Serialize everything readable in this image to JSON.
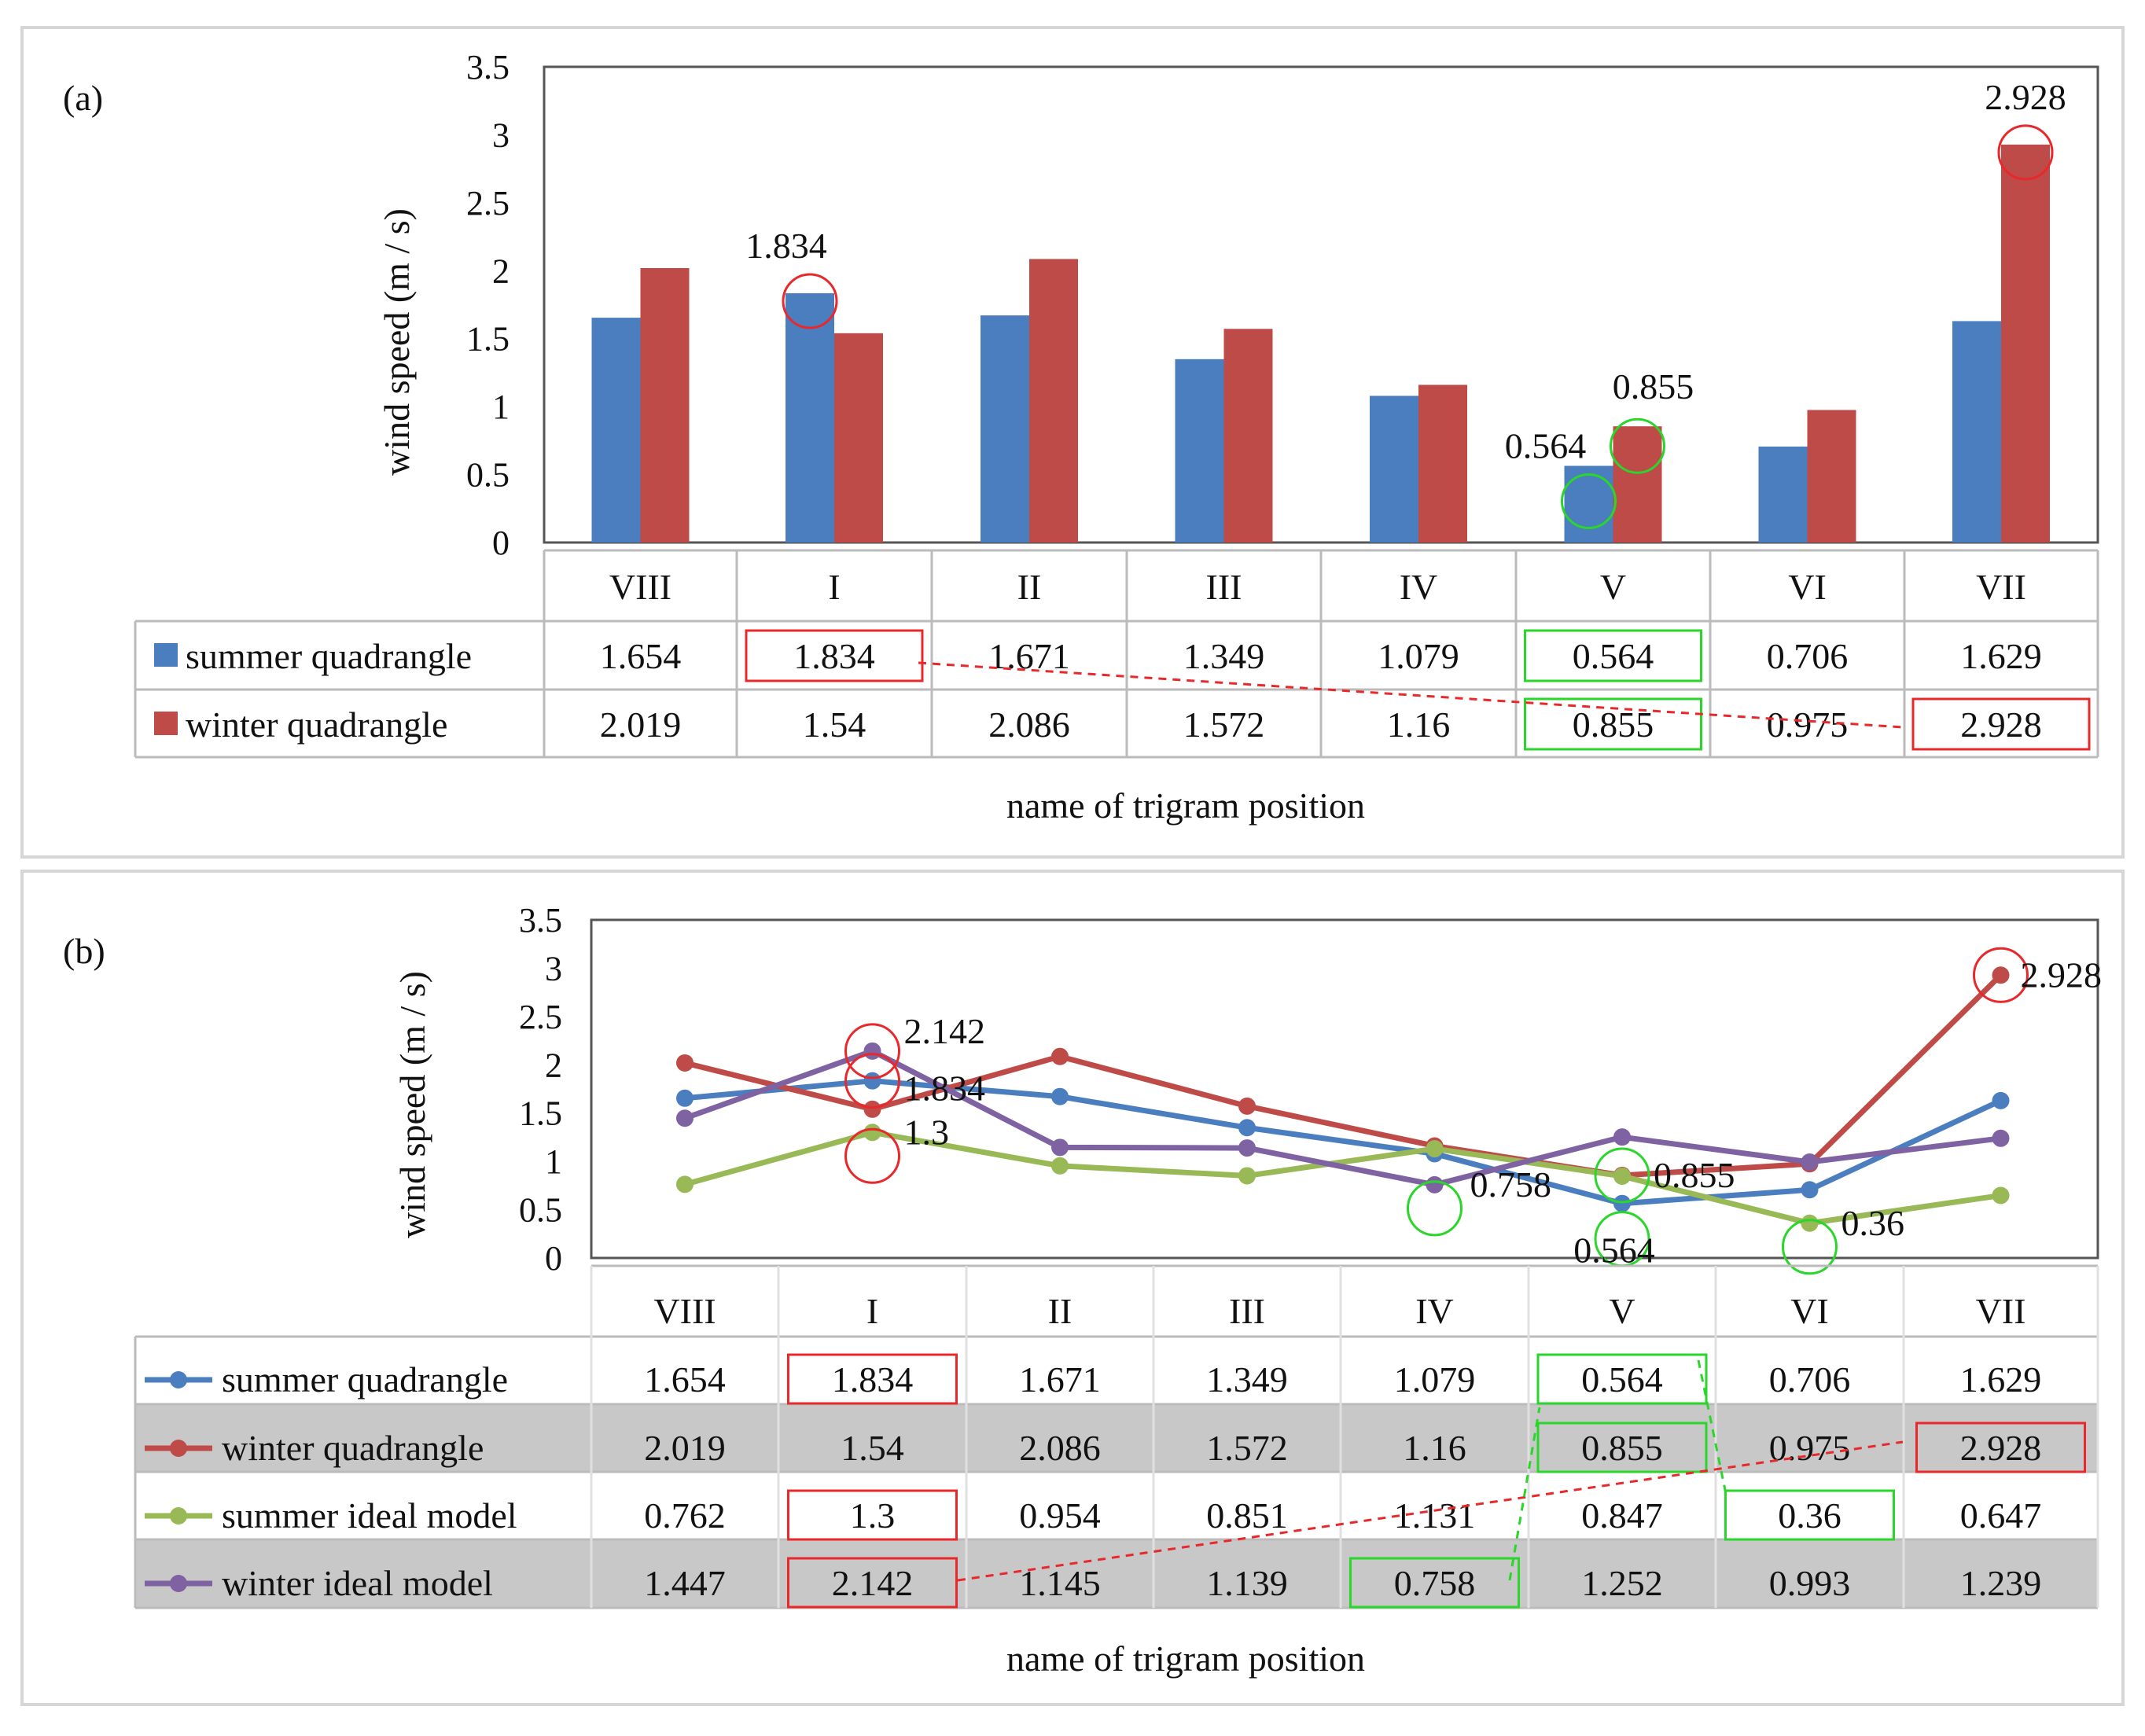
{
  "categories": [
    "VIII",
    "I",
    "II",
    "III",
    "IV",
    "V",
    "VI",
    "VII"
  ],
  "colors": {
    "summer_quadrangle": "#4a7ebf",
    "winter_quadrangle": "#be4b48",
    "summer_ideal_model": "#98b955",
    "winter_ideal_model": "#7e62a1",
    "highlight_max": "#e8282b",
    "highlight_min": "#2bd62b",
    "table_shade": "#c8c8c8"
  },
  "chart_data": [
    {
      "panel_label": "(a)",
      "type": "bar",
      "categories": [
        "VIII",
        "I",
        "II",
        "III",
        "IV",
        "V",
        "VI",
        "VII"
      ],
      "ylabel": "wind speed (m / s)",
      "xlabel": "name of trigram position",
      "ylim": [
        0,
        3.5
      ],
      "yticks": [
        "0",
        "0.5",
        "1",
        "1.5",
        "2",
        "2.5",
        "3",
        "3.5"
      ],
      "series": [
        {
          "name": "summer quadrangle",
          "values": [
            1.654,
            1.834,
            1.671,
            1.349,
            1.079,
            0.564,
            0.706,
            1.629
          ],
          "table_values": [
            "1.654",
            "1.834",
            "1.671",
            "1.349",
            "1.079",
            "0.564",
            "0.706",
            "1.629"
          ]
        },
        {
          "name": "winter quadrangle",
          "values": [
            2.019,
            1.54,
            2.086,
            1.572,
            1.16,
            0.855,
            0.975,
            2.928
          ],
          "table_values": [
            "2.019",
            "1.54",
            "2.086",
            "1.572",
            "1.16",
            "0.855",
            "0.975",
            "2.928"
          ]
        }
      ],
      "annotations": [
        {
          "text": "1.834",
          "series": 0,
          "category": 1,
          "kind": "max"
        },
        {
          "text": "2.928",
          "series": 1,
          "category": 7,
          "kind": "max"
        },
        {
          "text": "0.564",
          "series": 0,
          "category": 5,
          "kind": "min"
        },
        {
          "text": "0.855",
          "series": 1,
          "category": 5,
          "kind": "min"
        }
      ],
      "table_highlights": [
        {
          "series": 0,
          "category": 1,
          "kind": "max"
        },
        {
          "series": 1,
          "category": 7,
          "kind": "max"
        },
        {
          "series": 0,
          "category": 5,
          "kind": "min"
        },
        {
          "series": 1,
          "category": 5,
          "kind": "min"
        }
      ]
    },
    {
      "panel_label": "(b)",
      "type": "line",
      "categories": [
        "VIII",
        "I",
        "II",
        "III",
        "IV",
        "V",
        "VI",
        "VII"
      ],
      "ylabel": "wind speed (m / s)",
      "xlabel": "name of trigram position",
      "ylim": [
        0,
        3.5
      ],
      "yticks": [
        "0",
        "0.5",
        "1",
        "1.5",
        "2",
        "2.5",
        "3",
        "3.5"
      ],
      "series": [
        {
          "name": "summer quadrangle",
          "values": [
            1.654,
            1.834,
            1.671,
            1.349,
            1.079,
            0.564,
            0.706,
            1.629
          ],
          "table_values": [
            "1.654",
            "1.834",
            "1.671",
            "1.349",
            "1.079",
            "0.564",
            "0.706",
            "1.629"
          ]
        },
        {
          "name": "winter quadrangle",
          "values": [
            2.019,
            1.54,
            2.086,
            1.572,
            1.16,
            0.855,
            0.975,
            2.928
          ],
          "table_values": [
            "2.019",
            "1.54",
            "2.086",
            "1.572",
            "1.16",
            "0.855",
            "0.975",
            "2.928"
          ]
        },
        {
          "name": "summer ideal model",
          "values": [
            0.762,
            1.3,
            0.954,
            0.851,
            1.131,
            0.847,
            0.36,
            0.647
          ],
          "table_values": [
            "0.762",
            "1.3",
            "0.954",
            "0.851",
            "1.131",
            "0.847",
            "0.36",
            "0.647"
          ]
        },
        {
          "name": "winter ideal model",
          "values": [
            1.447,
            2.142,
            1.145,
            1.139,
            0.758,
            1.252,
            0.993,
            1.239
          ],
          "table_values": [
            "1.447",
            "2.142",
            "1.145",
            "1.139",
            "0.758",
            "1.252",
            "0.993",
            "1.239"
          ]
        }
      ],
      "annotations": [
        {
          "text": "2.142",
          "series": 3,
          "category": 1,
          "kind": "max"
        },
        {
          "text": "1.834",
          "series": 0,
          "category": 1,
          "kind": "max"
        },
        {
          "text": "1.3",
          "series": 2,
          "category": 1,
          "kind": "max"
        },
        {
          "text": "2.928",
          "series": 1,
          "category": 7,
          "kind": "max"
        },
        {
          "text": "0.758",
          "series": 3,
          "category": 4,
          "kind": "min"
        },
        {
          "text": "0.855",
          "series": 1,
          "category": 5,
          "kind": "min"
        },
        {
          "text": "0.564",
          "series": 0,
          "category": 5,
          "kind": "min"
        },
        {
          "text": "0.36",
          "series": 2,
          "category": 6,
          "kind": "min"
        }
      ],
      "table_highlights": [
        {
          "series": 0,
          "category": 1,
          "kind": "max"
        },
        {
          "series": 2,
          "category": 1,
          "kind": "max"
        },
        {
          "series": 3,
          "category": 1,
          "kind": "max"
        },
        {
          "series": 1,
          "category": 7,
          "kind": "max"
        },
        {
          "series": 0,
          "category": 5,
          "kind": "min"
        },
        {
          "series": 1,
          "category": 5,
          "kind": "min"
        },
        {
          "series": 2,
          "category": 6,
          "kind": "min"
        },
        {
          "series": 3,
          "category": 4,
          "kind": "min"
        }
      ],
      "shaded_rows": [
        1,
        3
      ]
    }
  ]
}
